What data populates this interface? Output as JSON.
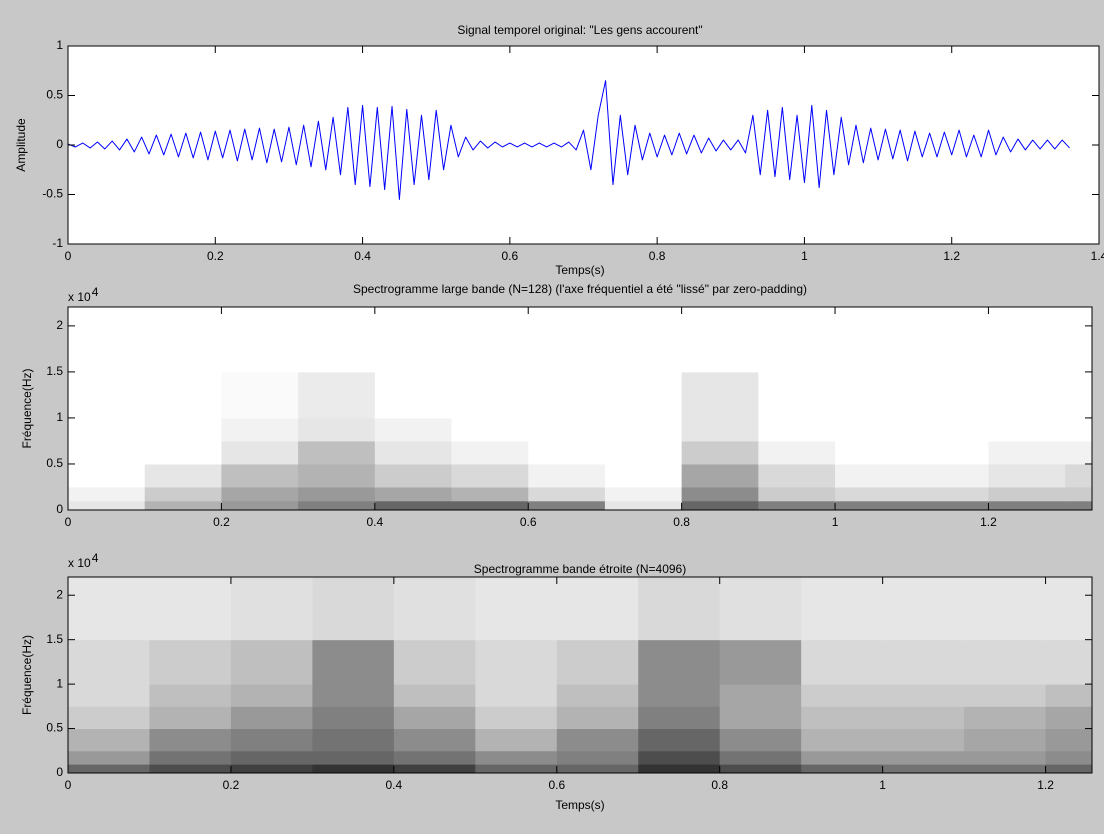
{
  "chart_data": [
    {
      "type": "line",
      "title": "Signal temporel original: \"Les gens accourent\"",
      "xlabel": "Temps(s)",
      "ylabel": "Amplitude",
      "color": "#0000ff",
      "xlim": [
        0,
        1.4
      ],
      "ylim": [
        -1,
        1
      ],
      "xticks": [
        0,
        0.2,
        0.4,
        0.6,
        0.8,
        1,
        1.2,
        1.4
      ],
      "yticks": [
        -1,
        -0.5,
        0,
        0.5,
        1
      ],
      "x": [
        0,
        0.01,
        0.02,
        0.03,
        0.04,
        0.05,
        0.06,
        0.07,
        0.08,
        0.09,
        0.1,
        0.11,
        0.12,
        0.13,
        0.14,
        0.15,
        0.16,
        0.17,
        0.18,
        0.19,
        0.2,
        0.21,
        0.22,
        0.23,
        0.24,
        0.25,
        0.26,
        0.27,
        0.28,
        0.29,
        0.3,
        0.31,
        0.32,
        0.33,
        0.34,
        0.35,
        0.36,
        0.37,
        0.38,
        0.39,
        0.4,
        0.41,
        0.42,
        0.43,
        0.44,
        0.45,
        0.46,
        0.47,
        0.48,
        0.49,
        0.5,
        0.51,
        0.52,
        0.53,
        0.54,
        0.55,
        0.56,
        0.57,
        0.58,
        0.59,
        0.6,
        0.61,
        0.62,
        0.63,
        0.64,
        0.65,
        0.66,
        0.67,
        0.68,
        0.69,
        0.7,
        0.71,
        0.72,
        0.73,
        0.74,
        0.75,
        0.76,
        0.77,
        0.78,
        0.79,
        0.8,
        0.81,
        0.82,
        0.83,
        0.84,
        0.85,
        0.86,
        0.87,
        0.88,
        0.89,
        0.9,
        0.91,
        0.92,
        0.93,
        0.94,
        0.95,
        0.96,
        0.97,
        0.98,
        0.99,
        1,
        1.01,
        1.02,
        1.03,
        1.04,
        1.05,
        1.06,
        1.07,
        1.08,
        1.09,
        1.1,
        1.11,
        1.12,
        1.13,
        1.14,
        1.15,
        1.16,
        1.17,
        1.18,
        1.19,
        1.2,
        1.21,
        1.22,
        1.23,
        1.24,
        1.25,
        1.26,
        1.27,
        1.28,
        1.29,
        1.3,
        1.31,
        1.32,
        1.33,
        1.34,
        1.35,
        1.36
      ],
      "values": [
        0.01,
        -0.02,
        0.02,
        -0.03,
        0.03,
        -0.04,
        0.04,
        -0.05,
        0.06,
        -0.07,
        0.08,
        -0.09,
        0.1,
        -0.1,
        0.11,
        -0.12,
        0.12,
        -0.13,
        0.13,
        -0.15,
        0.14,
        -0.13,
        0.15,
        -0.16,
        0.16,
        -0.15,
        0.17,
        -0.18,
        0.16,
        -0.17,
        0.18,
        -0.2,
        0.2,
        -0.22,
        0.24,
        -0.25,
        0.28,
        -0.3,
        0.38,
        -0.4,
        0.4,
        -0.42,
        0.38,
        -0.45,
        0.39,
        -0.55,
        0.36,
        -0.4,
        0.3,
        -0.35,
        0.35,
        -0.25,
        0.2,
        -0.12,
        0.08,
        -0.05,
        0.04,
        -0.03,
        0.03,
        -0.02,
        0.02,
        -0.02,
        0.02,
        -0.02,
        0.02,
        -0.02,
        0.02,
        -0.02,
        0.03,
        -0.05,
        0.15,
        -0.25,
        0.3,
        0.65,
        -0.4,
        0.3,
        -0.3,
        0.2,
        -0.15,
        0.12,
        -0.12,
        0.1,
        -0.1,
        0.12,
        -0.09,
        0.1,
        -0.08,
        0.07,
        -0.06,
        0.05,
        -0.05,
        0.05,
        -0.08,
        0.3,
        -0.3,
        0.35,
        -0.32,
        0.38,
        -0.35,
        0.3,
        -0.38,
        0.4,
        -0.43,
        0.35,
        -0.3,
        0.28,
        -0.2,
        0.2,
        -0.18,
        0.17,
        -0.15,
        0.16,
        -0.14,
        0.15,
        -0.16,
        0.14,
        -0.12,
        0.12,
        -0.12,
        0.13,
        -0.1,
        0.15,
        -0.12,
        0.1,
        -0.12,
        0.15,
        -0.1,
        0.08,
        -0.07,
        0.06,
        -0.05,
        0.05,
        -0.04,
        0.05,
        -0.04,
        0.05,
        -0.03
      ]
    },
    {
      "type": "heatmap",
      "title": "Spectrogramme large bande (N=128) (l'axe fréquentiel a été \"lissé\" par zero-padding)",
      "ylabel": "Fréquence(Hz)",
      "y_multiplier": "x 10",
      "y_multiplier_exponent": "4",
      "xlim": [
        0,
        1.335
      ],
      "ylim": [
        0,
        2.205
      ],
      "xticks": [
        0,
        0.2,
        0.4,
        0.6,
        0.8,
        1,
        1.2
      ],
      "yticks": [
        0,
        0.5,
        1,
        1.5,
        2
      ],
      "x_edges": [
        0,
        0.1,
        0.2,
        0.3,
        0.4,
        0.5,
        0.6,
        0.7,
        0.8,
        0.9,
        1,
        1.1,
        1.2,
        1.3,
        1.335
      ],
      "y_edges": [
        0,
        0.1,
        0.25,
        0.5,
        0.75,
        1,
        1.5,
        2.205
      ],
      "z": [
        [
          0.1,
          0.3,
          0.4,
          0.5,
          0.6,
          0.6,
          0.5,
          0.1,
          0.6,
          0.5,
          0.5,
          0.5,
          0.5,
          0.5
        ],
        [
          0.05,
          0.2,
          0.35,
          0.4,
          0.35,
          0.3,
          0.15,
          0.05,
          0.45,
          0.2,
          0.15,
          0.15,
          0.2,
          0.2
        ],
        [
          0,
          0.1,
          0.25,
          0.3,
          0.2,
          0.15,
          0.05,
          0,
          0.35,
          0.15,
          0.05,
          0.05,
          0.1,
          0.15
        ],
        [
          0,
          0,
          0.1,
          0.25,
          0.1,
          0.05,
          0,
          0,
          0.2,
          0.05,
          0,
          0,
          0.05,
          0.05
        ],
        [
          0,
          0,
          0.05,
          0.1,
          0.05,
          0,
          0,
          0,
          0.1,
          0,
          0,
          0,
          0,
          0
        ],
        [
          0,
          0,
          0.02,
          0.08,
          0,
          0,
          0,
          0,
          0.1,
          0,
          0,
          0,
          0,
          0
        ],
        [
          0,
          0,
          0,
          0,
          0,
          0,
          0,
          0,
          0,
          0,
          0,
          0,
          0,
          0
        ]
      ]
    },
    {
      "type": "heatmap",
      "title": "Spectrogramme bande étroite (N=4096)",
      "xlabel": "Temps(s)",
      "ylabel": "Fréquence(Hz)",
      "y_multiplier": "x 10",
      "y_multiplier_exponent": "4",
      "xlim": [
        0,
        1.257
      ],
      "ylim": [
        0,
        2.205
      ],
      "xticks": [
        0,
        0.2,
        0.4,
        0.6,
        0.8,
        1,
        1.2
      ],
      "yticks": [
        0,
        0.5,
        1,
        1.5,
        2
      ],
      "x_edges": [
        0,
        0.1,
        0.2,
        0.3,
        0.4,
        0.5,
        0.6,
        0.7,
        0.8,
        0.9,
        1,
        1.1,
        1.2,
        1.257
      ],
      "y_edges": [
        0,
        0.1,
        0.25,
        0.5,
        0.75,
        1,
        1.5,
        2.205
      ],
      "z": [
        [
          0.6,
          0.7,
          0.75,
          0.8,
          0.75,
          0.6,
          0.6,
          0.8,
          0.7,
          0.6,
          0.55,
          0.55,
          0.6
        ],
        [
          0.4,
          0.55,
          0.6,
          0.6,
          0.55,
          0.45,
          0.5,
          0.7,
          0.55,
          0.4,
          0.4,
          0.4,
          0.45
        ],
        [
          0.3,
          0.45,
          0.5,
          0.55,
          0.45,
          0.3,
          0.45,
          0.6,
          0.45,
          0.3,
          0.3,
          0.35,
          0.4
        ],
        [
          0.2,
          0.3,
          0.4,
          0.5,
          0.35,
          0.2,
          0.3,
          0.5,
          0.35,
          0.25,
          0.25,
          0.3,
          0.35
        ],
        [
          0.15,
          0.25,
          0.3,
          0.45,
          0.25,
          0.15,
          0.25,
          0.45,
          0.35,
          0.2,
          0.2,
          0.2,
          0.25
        ],
        [
          0.15,
          0.2,
          0.25,
          0.45,
          0.2,
          0.15,
          0.2,
          0.45,
          0.4,
          0.15,
          0.15,
          0.15,
          0.15
        ],
        [
          0.1,
          0.1,
          0.12,
          0.15,
          0.12,
          0.1,
          0.1,
          0.15,
          0.12,
          0.1,
          0.1,
          0.1,
          0.1
        ]
      ]
    }
  ]
}
